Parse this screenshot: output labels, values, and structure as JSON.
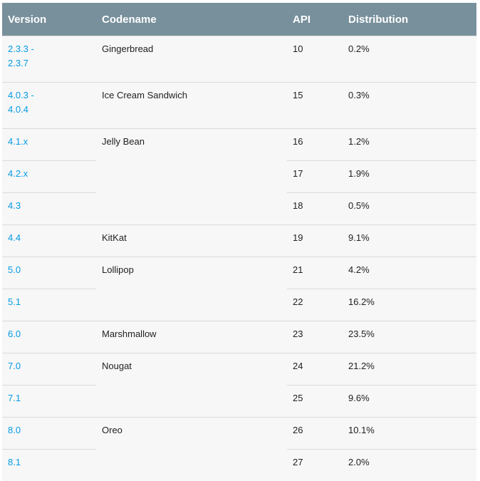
{
  "header": {
    "version": "Version",
    "codename": "Codename",
    "api": "API",
    "distribution": "Distribution"
  },
  "rows": [
    {
      "version": "2.3.3 -\n2.3.7",
      "codename": "Gingerbread",
      "api": "10",
      "distribution": "0.2%"
    },
    {
      "version": "4.0.3 -\n4.0.4",
      "codename": "Ice Cream Sandwich",
      "api": "15",
      "distribution": "0.3%"
    },
    {
      "version": "4.1.x",
      "codename": "Jelly Bean",
      "api": "16",
      "distribution": "1.2%"
    },
    {
      "version": "4.2.x",
      "api": "17",
      "distribution": "1.9%"
    },
    {
      "version": "4.3",
      "api": "18",
      "distribution": "0.5%"
    },
    {
      "version": "4.4",
      "codename": "KitKat",
      "api": "19",
      "distribution": "9.1%"
    },
    {
      "version": "5.0",
      "codename": "Lollipop",
      "api": "21",
      "distribution": "4.2%"
    },
    {
      "version": "5.1",
      "api": "22",
      "distribution": "16.2%"
    },
    {
      "version": "6.0",
      "codename": "Marshmallow",
      "api": "23",
      "distribution": "23.5%"
    },
    {
      "version": "7.0",
      "codename": "Nougat",
      "api": "24",
      "distribution": "21.2%"
    },
    {
      "version": "7.1",
      "api": "25",
      "distribution": "9.6%"
    },
    {
      "version": "8.0",
      "codename": "Oreo",
      "api": "26",
      "distribution": "10.1%"
    },
    {
      "version": "8.1",
      "api": "27",
      "distribution": "2.0%"
    }
  ],
  "colors": {
    "header_bg": "#78909c",
    "link": "#039be5",
    "row_bg": "#f7f7f7"
  }
}
